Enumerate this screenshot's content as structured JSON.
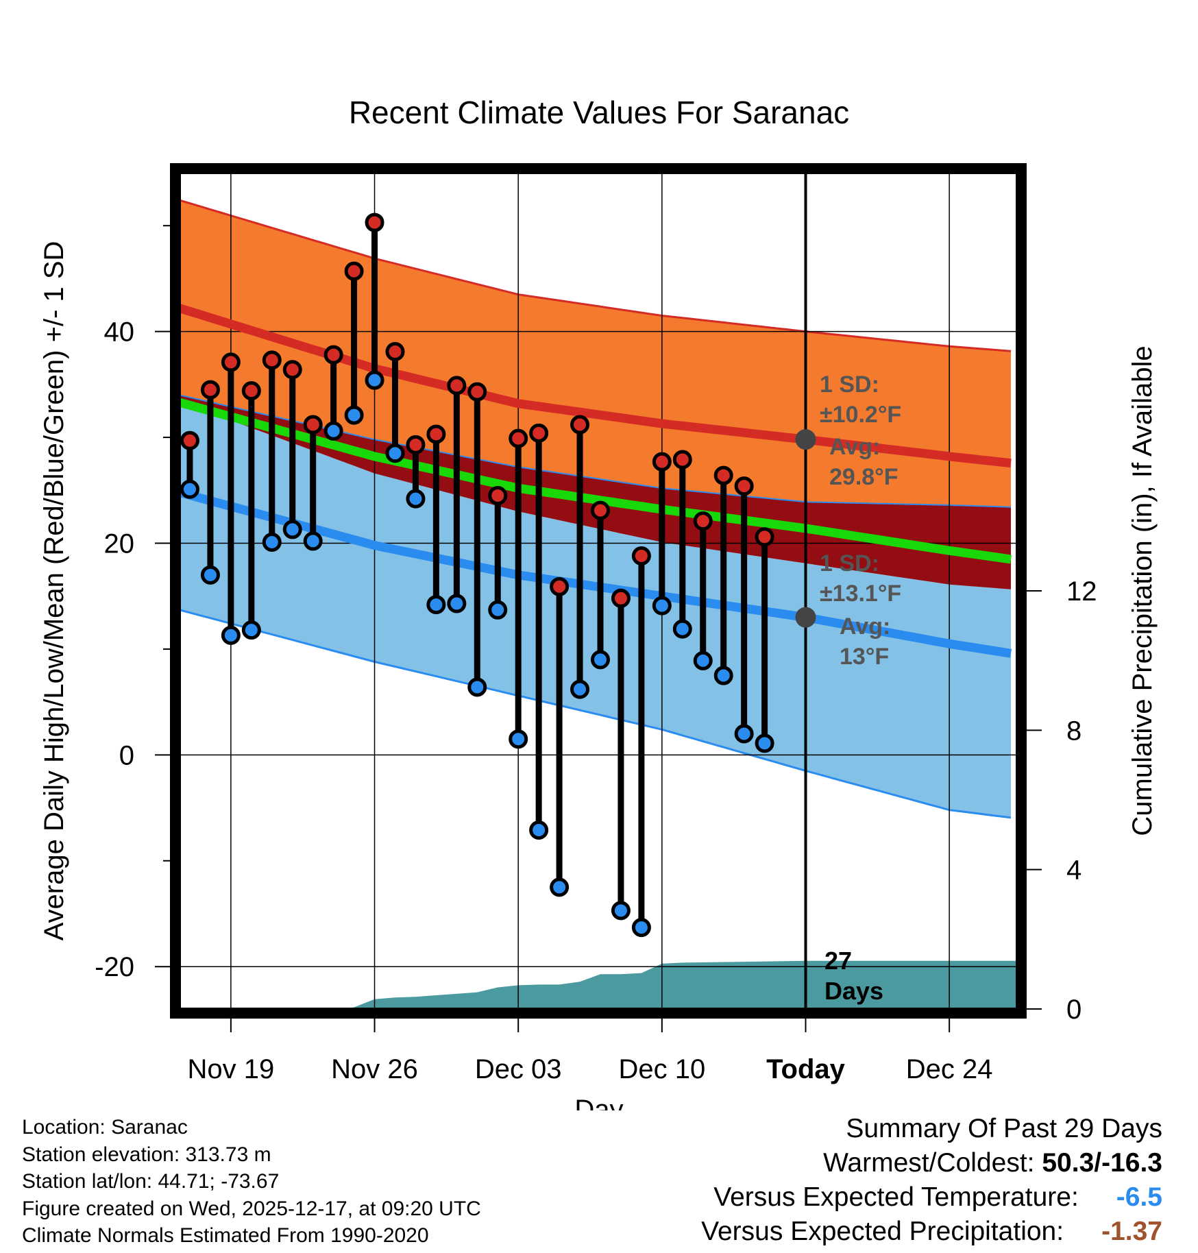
{
  "chart_data": {
    "type": "climate-range",
    "title": "Recent Climate Values For Saranac",
    "xlabel": "Day",
    "ylabel_left": "Average Daily High/Low/Mean (Red/Blue/Green) +/- 1 SD",
    "ylabel_right": "Cumulative Precipitation (in), If Available",
    "y_left_range": [
      -24,
      55
    ],
    "y_left_ticks": [
      -20,
      0,
      20,
      40
    ],
    "y_left_ticks_minor": [
      -10,
      10,
      30,
      50
    ],
    "y_right_range": [
      0,
      24
    ],
    "y_right_ticks": [
      0,
      4,
      8,
      12
    ],
    "x_range": [
      -2.5,
      38.3
    ],
    "x_ticks": [
      {
        "day": 0,
        "label": "Nov 19"
      },
      {
        "day": 7,
        "label": "Nov 26"
      },
      {
        "day": 14,
        "label": "Dec 03"
      },
      {
        "day": 21,
        "label": "Dec 10"
      },
      {
        "day": 28,
        "label": "Today"
      },
      {
        "day": 35,
        "label": "Dec 24"
      }
    ],
    "today_day": 28,
    "normals": {
      "days": [
        -2.5,
        7,
        14,
        21,
        28,
        35,
        38.3
      ],
      "high_mean": [
        42.2,
        36.5,
        33.2,
        31.3,
        29.8,
        28.2,
        27.5
      ],
      "high_upper": [
        52.4,
        46.9,
        43.5,
        41.5,
        40.0,
        38.6,
        38.1
      ],
      "high_lower": [
        34.0,
        29.8,
        27.2,
        25.2,
        23.9,
        23.6,
        23.4
      ],
      "low_mean": [
        24.8,
        19.8,
        17.0,
        15.0,
        13.0,
        10.5,
        9.5
      ],
      "low_upper": [
        33.4,
        26.6,
        23.0,
        20.1,
        18.1,
        16.1,
        15.6
      ],
      "low_lower": [
        13.7,
        8.8,
        5.6,
        2.4,
        -1.5,
        -5.2,
        -6.0
      ],
      "mean": [
        33.3,
        28.2,
        25.2,
        23.2,
        21.4,
        19.3,
        18.4
      ]
    },
    "observations": [
      {
        "day": -2,
        "high": 29.7,
        "low": 25.1
      },
      {
        "day": -1,
        "high": 34.5,
        "low": 17.0
      },
      {
        "day": 0,
        "high": 37.1,
        "low": 11.3
      },
      {
        "day": 1,
        "high": 34.4,
        "low": 11.8
      },
      {
        "day": 2,
        "high": 37.3,
        "low": 20.1
      },
      {
        "day": 3,
        "high": 36.4,
        "low": 21.3
      },
      {
        "day": 4,
        "high": 31.2,
        "low": 20.2
      },
      {
        "day": 5,
        "high": 37.8,
        "low": 30.6
      },
      {
        "day": 6,
        "high": 45.7,
        "low": 32.1
      },
      {
        "day": 7,
        "high": 50.3,
        "low": 35.4
      },
      {
        "day": 8,
        "high": 38.1,
        "low": 28.5
      },
      {
        "day": 9,
        "high": 29.3,
        "low": 24.2
      },
      {
        "day": 10,
        "high": 30.3,
        "low": 14.2
      },
      {
        "day": 11,
        "high": 34.9,
        "low": 14.3
      },
      {
        "day": 12,
        "high": 34.3,
        "low": 6.4
      },
      {
        "day": 13,
        "high": 24.5,
        "low": 13.7
      },
      {
        "day": 14,
        "high": 29.9,
        "low": 1.5
      },
      {
        "day": 15,
        "high": 30.4,
        "low": -7.1
      },
      {
        "day": 16,
        "high": 15.9,
        "low": -12.5
      },
      {
        "day": 17,
        "high": 31.2,
        "low": 6.2
      },
      {
        "day": 18,
        "high": 23.1,
        "low": 9.0
      },
      {
        "day": 19,
        "high": 14.8,
        "low": -14.7
      },
      {
        "day": 20,
        "high": 18.8,
        "low": -16.3
      },
      {
        "day": 21,
        "high": 27.7,
        "low": 14.1
      },
      {
        "day": 22,
        "high": 27.9,
        "low": 11.9
      },
      {
        "day": 23,
        "high": 22.1,
        "low": 8.9
      },
      {
        "day": 24,
        "high": 26.4,
        "low": 7.5
      },
      {
        "day": 25,
        "high": 25.4,
        "low": 2.0
      },
      {
        "day": 26,
        "high": 20.6,
        "low": 1.1
      }
    ],
    "precipitation": {
      "days": [
        -2.5,
        5.5,
        6,
        7,
        8,
        9,
        12,
        13,
        14,
        15,
        16,
        17,
        18,
        19,
        20,
        21,
        22,
        28,
        38.3
      ],
      "cumulative": [
        0,
        0,
        0.05,
        0.28,
        0.33,
        0.35,
        0.48,
        0.62,
        0.68,
        0.7,
        0.7,
        0.78,
        1.0,
        1.0,
        1.03,
        1.3,
        1.33,
        1.38,
        1.38
      ]
    },
    "annotations": {
      "high_sd_line1": "1 SD:",
      "high_sd_line2": "±10.2°F",
      "high_avg_line1": "Avg:",
      "high_avg_line2": "29.8°F",
      "high_avg_value": 29.8,
      "low_sd_line1": "1 SD:",
      "low_sd_line2": "±13.1°F",
      "low_avg_line1": "Avg:",
      "low_avg_line2": "13°F",
      "low_avg_value": 13,
      "days_count": "27",
      "days_label": "Days"
    },
    "colors": {
      "high_band": "#f47a2e",
      "high_line": "#d42b25",
      "overlap_band": "#930d13",
      "low_band": "#83c1e7",
      "low_line": "#2b8cf0",
      "mean_line": "#19d80a",
      "precip": "#4a9aa0",
      "high_dot": "#d42b25",
      "low_dot": "#2b8cf0",
      "annotation_text": "#555555"
    }
  },
  "footer": {
    "location": "Location: Saranac",
    "elevation": "Station elevation: 313.73 m",
    "latlon": "Station lat/lon: 44.71; -73.67",
    "created": "Figure created on Wed, 2025-12-17, at 09:20 UTC",
    "normals": "Climate Normals Estimated From 1990-2020"
  },
  "summary": {
    "title": "Summary Of Past 29 Days",
    "warmest_coldest_label": "Warmest/Coldest: ",
    "warmest_coldest_value": "50.3/-16.3",
    "temp_label": "Versus Expected Temperature:",
    "temp_value": "-6.5",
    "temp_color": "#2b8cf0",
    "precip_label": "Versus Expected Precipitation:",
    "precip_value": "-1.37",
    "precip_color": "#a0522d"
  }
}
